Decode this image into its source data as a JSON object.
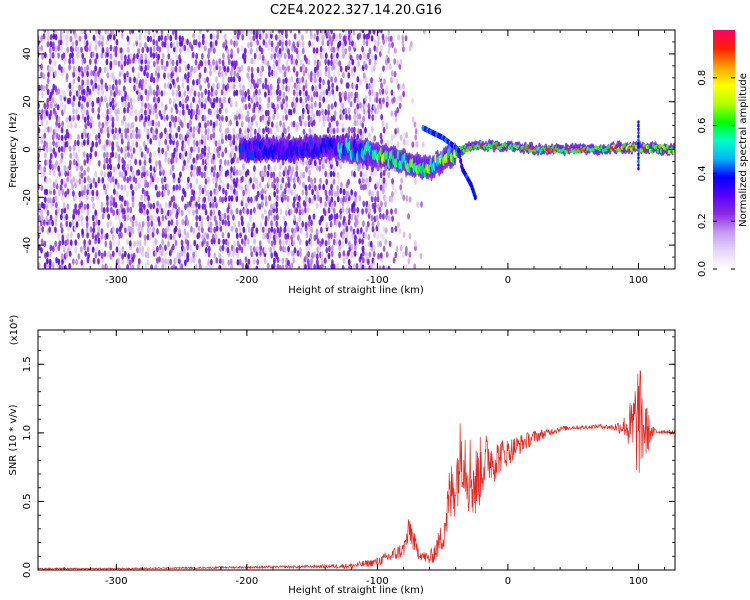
{
  "title": "C2E4.2022.327.14.20.G16",
  "chart_data": [
    {
      "type": "heatmap",
      "xlabel": "Height of straight line (km)",
      "ylabel": "Frequency (Hz)",
      "xlim": [
        -360,
        128
      ],
      "ylim": [
        -50,
        50
      ],
      "x_ticks": [
        -300,
        -200,
        -100,
        0,
        100
      ],
      "x_tick_labels": [
        "-300",
        "-200",
        "-100",
        "0",
        "100"
      ],
      "y_ticks": [
        -40,
        -20,
        0,
        20,
        40
      ],
      "y_tick_labels": [
        "-40",
        "-20",
        "0",
        "20",
        "40"
      ],
      "colorbar": {
        "label": "Normalized spectral amplitude",
        "range": [
          0.0,
          1.0
        ],
        "ticks": [
          0.0,
          0.2,
          0.4,
          0.6,
          0.8
        ],
        "tick_labels": [
          "0.0",
          "0.2",
          "0.4",
          "0.6",
          "0.8"
        ],
        "colors": [
          "#ffffff",
          "#e6d4f7",
          "#c49bf0",
          "#8a2be2",
          "#5a00ff",
          "#0000ff",
          "#00b4ff",
          "#00ffc8",
          "#00ff00",
          "#b4ff00",
          "#ffff00",
          "#ffa000",
          "#ff2000",
          "#ff0066"
        ]
      },
      "features": {
        "noise_region_x": [
          -360,
          -110
        ],
        "noise_fade_to_x": -65,
        "ridge_track": [
          {
            "x": -200,
            "y": 0
          },
          {
            "x": -170,
            "y": 0
          },
          {
            "x": -140,
            "y": 1
          },
          {
            "x": -120,
            "y": 0
          },
          {
            "x": -100,
            "y": -2
          },
          {
            "x": -80,
            "y": -5
          },
          {
            "x": -60,
            "y": -8
          },
          {
            "x": -45,
            "y": -3
          },
          {
            "x": -35,
            "y": 0
          },
          {
            "x": -20,
            "y": 2
          },
          {
            "x": 0,
            "y": 1
          },
          {
            "x": 30,
            "y": 0
          },
          {
            "x": 60,
            "y": 0
          },
          {
            "x": 90,
            "y": 1
          },
          {
            "x": 128,
            "y": 0
          }
        ],
        "secondary_branch": [
          {
            "x": -65,
            "y": 9
          },
          {
            "x": -50,
            "y": 5
          },
          {
            "x": -38,
            "y": 0
          },
          {
            "x": -35,
            "y": -8
          },
          {
            "x": -28,
            "y": -15
          },
          {
            "x": -25,
            "y": -20
          }
        ],
        "peak_amplitude_x": [
          -20,
          100
        ]
      }
    },
    {
      "type": "line",
      "xlabel": "Height of straight line (km)",
      "ylabel": "SNR (10 * v/v)",
      "scale_label": "(x10⁴)",
      "xlim": [
        -360,
        128
      ],
      "ylim": [
        0,
        1.75
      ],
      "x_ticks": [
        -300,
        -200,
        -100,
        0,
        100
      ],
      "x_tick_labels": [
        "-300",
        "-200",
        "-100",
        "0",
        "100"
      ],
      "y_ticks": [
        0.0,
        0.5,
        1.0,
        1.5
      ],
      "y_tick_labels": [
        "0.0",
        "0.5",
        "1.0",
        "1.5"
      ],
      "series": [
        {
          "color": "#e8251f",
          "x": [
            -360,
            -300,
            -250,
            -200,
            -150,
            -120,
            -100,
            -90,
            -80,
            -75,
            -70,
            -65,
            -60,
            -55,
            -50,
            -45,
            -40,
            -35,
            -30,
            -25,
            -20,
            -15,
            -10,
            -5,
            0,
            10,
            20,
            30,
            40,
            50,
            60,
            70,
            80,
            90,
            95,
            100,
            105,
            110,
            115,
            120,
            128
          ],
          "y": [
            0.01,
            0.01,
            0.015,
            0.02,
            0.025,
            0.03,
            0.06,
            0.1,
            0.15,
            0.3,
            0.15,
            0.1,
            0.08,
            0.15,
            0.25,
            0.5,
            0.65,
            0.9,
            0.72,
            0.62,
            0.76,
            0.82,
            0.8,
            0.84,
            0.86,
            0.92,
            0.97,
            1.0,
            1.03,
            1.04,
            1.04,
            1.05,
            1.04,
            1.05,
            1.02,
            1.1,
            1.02,
            1.0,
            1.01,
            1.01,
            1.0
          ],
          "noise": [
            0.005,
            0.005,
            0.005,
            0.008,
            0.01,
            0.02,
            0.03,
            0.05,
            0.06,
            0.12,
            0.06,
            0.04,
            0.05,
            0.08,
            0.12,
            0.25,
            0.25,
            0.3,
            0.32,
            0.28,
            0.24,
            0.18,
            0.16,
            0.12,
            0.1,
            0.07,
            0.05,
            0.03,
            0.02,
            0.015,
            0.015,
            0.015,
            0.02,
            0.08,
            0.25,
            0.45,
            0.25,
            0.05,
            0.02,
            0.015,
            0.015
          ]
        }
      ]
    }
  ]
}
